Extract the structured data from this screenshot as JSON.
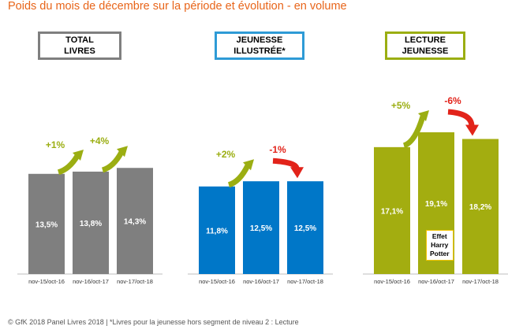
{
  "title": "Poids du mois de décembre sur la période et évolution - en volume",
  "footer": "© GfK 2018 Panel Livres 2018 | *Livres pour la jeunesse hors segment de niveau 2 : Lecture",
  "colors": {
    "title": "#E8651A",
    "up_arrow": "#9BAE12",
    "down_arrow": "#E2231A"
  },
  "callout": {
    "lines": [
      "Effet",
      "Harry",
      "Potter"
    ],
    "border_color": "#F2C400"
  },
  "chart_data": [
    {
      "type": "bar",
      "title_lines": [
        "TOTAL",
        "LIVRES"
      ],
      "frame_color": "#7F7F7F",
      "bar_color": "#7F7F7F",
      "categories": [
        "nov-15/oct-16",
        "nov-16/oct-17",
        "nov-17/oct-18"
      ],
      "values": [
        13.5,
        13.8,
        14.3
      ],
      "value_labels": [
        "13,5%",
        "13,8%",
        "14,3%"
      ],
      "changes": [
        {
          "label": "+1%",
          "direction": "up"
        },
        {
          "label": "+4%",
          "direction": "up"
        }
      ],
      "ylim": [
        0,
        25
      ]
    },
    {
      "type": "bar",
      "title_lines": [
        "JEUNESSE",
        "ILLUSTRÉE*"
      ],
      "frame_color": "#2E9BD6",
      "bar_color": "#0077C8",
      "categories": [
        "nov-15/oct-16",
        "nov-16/oct-17",
        "nov-17/oct-18"
      ],
      "values": [
        11.8,
        12.5,
        12.5
      ],
      "value_labels": [
        "11,8%",
        "12,5%",
        "12,5%"
      ],
      "changes": [
        {
          "label": "+2%",
          "direction": "up"
        },
        {
          "label": "-1%",
          "direction": "down"
        }
      ],
      "ylim": [
        0,
        25
      ]
    },
    {
      "type": "bar",
      "title_lines": [
        "LECTURE",
        "JEUNESSE"
      ],
      "frame_color": "#9BAE12",
      "bar_color": "#A3AD10",
      "categories": [
        "nov-15/oct-16",
        "nov-16/oct-17",
        "nov-17/oct-18"
      ],
      "values": [
        17.1,
        19.1,
        18.2
      ],
      "value_labels": [
        "17,1%",
        "19,1%",
        "18,2%"
      ],
      "changes": [
        {
          "label": "+5%",
          "direction": "up"
        },
        {
          "label": "-6%",
          "direction": "down"
        }
      ],
      "ylim": [
        0,
        25
      ]
    }
  ]
}
